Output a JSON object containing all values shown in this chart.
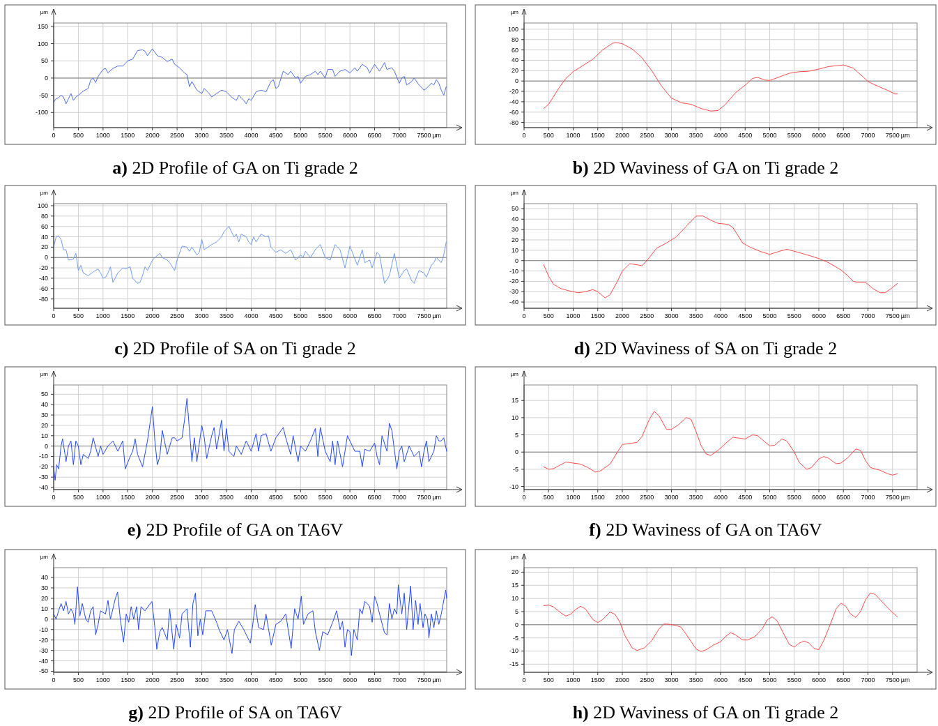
{
  "chart_data": [
    {
      "type": "line",
      "title": "a) 2D Profile of GA on Ti grade 2",
      "xlabel": "µm",
      "ylabel": "µm",
      "xlim": [
        0,
        7960
      ],
      "ylim": [
        -144,
        160
      ],
      "grid": true,
      "xticks": [
        0,
        500,
        1000,
        1500,
        2000,
        2500,
        3000,
        3500,
        4000,
        4500,
        5000,
        5500,
        6000,
        6500,
        7000,
        7500
      ],
      "yticks": [
        -100,
        -50,
        0,
        50,
        100,
        150
      ],
      "ref_lines": [
        {
          "axis": "y",
          "value": 0,
          "color": "#7f7f7f"
        }
      ],
      "series": [
        {
          "color": "#4a6ee8",
          "x": [
            0,
            50,
            100,
            150,
            200,
            250,
            300,
            350,
            400,
            450,
            500,
            600,
            700,
            750,
            800,
            850,
            900,
            1000,
            1050,
            1100,
            1200,
            1300,
            1400,
            1500,
            1600,
            1700,
            1800,
            1850,
            1900,
            2000,
            2100,
            2200,
            2300,
            2400,
            2450,
            2550,
            2650,
            2700,
            2750,
            2800,
            2900,
            3000,
            3050,
            3150,
            3200,
            3300,
            3400,
            3500,
            3600,
            3700,
            3750,
            3850,
            3900,
            3950,
            4000,
            4100,
            4200,
            4300,
            4400,
            4450,
            4500,
            4550,
            4650,
            4750,
            4800,
            4900,
            4950,
            5000,
            5100,
            5200,
            5300,
            5350,
            5400,
            5500,
            5550,
            5650,
            5700,
            5800,
            5900,
            6000,
            6100,
            6150,
            6250,
            6350,
            6400,
            6500,
            6600,
            6700,
            6750,
            6850,
            6900,
            7000,
            7050,
            7100,
            7150,
            7250,
            7300,
            7400,
            7500,
            7550,
            7650,
            7700,
            7750,
            7800,
            7850,
            7900,
            7950
          ],
          "values": [
            -70,
            -60,
            -57,
            -50,
            -55,
            -75,
            -60,
            -45,
            -65,
            -55,
            -50,
            -38,
            -30,
            -5,
            0,
            -13,
            5,
            25,
            28,
            15,
            28,
            35,
            35,
            50,
            55,
            80,
            82,
            78,
            65,
            85,
            65,
            60,
            48,
            55,
            40,
            30,
            15,
            10,
            -25,
            -10,
            -35,
            -45,
            -30,
            -45,
            -55,
            -45,
            -35,
            -40,
            -55,
            -65,
            -50,
            -65,
            -75,
            -60,
            -65,
            -40,
            -35,
            -40,
            -10,
            -5,
            -30,
            -25,
            20,
            10,
            20,
            0,
            5,
            -15,
            5,
            10,
            20,
            10,
            20,
            0,
            25,
            25,
            5,
            20,
            25,
            15,
            30,
            20,
            40,
            30,
            15,
            40,
            20,
            45,
            25,
            30,
            20,
            -15,
            0,
            5,
            -20,
            -10,
            0,
            -20,
            -35,
            -30,
            -15,
            -20,
            -5,
            -15,
            -35,
            -50,
            -25
          ]
        }
      ]
    },
    {
      "type": "line",
      "title": "b) 2D Waviness of GA on Ti grade 2",
      "xlabel": "µm",
      "ylabel": "µm",
      "xlim": [
        0,
        8000
      ],
      "ylim": [
        -90,
        112
      ],
      "grid": true,
      "xticks": [
        0,
        500,
        1000,
        1500,
        2000,
        2500,
        3000,
        3500,
        4000,
        4500,
        5000,
        5500,
        6000,
        6500,
        7000,
        7500
      ],
      "yticks": [
        -80,
        -60,
        -40,
        -20,
        0,
        20,
        40,
        60,
        80,
        100
      ],
      "ref_lines": [
        {
          "axis": "y",
          "value": 0,
          "color": "#7f7f7f"
        }
      ],
      "series": [
        {
          "color": "#ff4a4a",
          "x": [
            400,
            500,
            700,
            850,
            1000,
            1200,
            1400,
            1600,
            1800,
            1900,
            2000,
            2200,
            2400,
            2600,
            2800,
            3000,
            3200,
            3400,
            3600,
            3800,
            3950,
            4100,
            4300,
            4500,
            4650,
            4750,
            4900,
            5000,
            5200,
            5400,
            5600,
            5800,
            6000,
            6200,
            6500,
            6700,
            6900,
            7000,
            7200,
            7400,
            7550,
            7600
          ],
          "values": [
            -53,
            -45,
            -15,
            5,
            18,
            30,
            42,
            60,
            73,
            74,
            72,
            62,
            45,
            20,
            -10,
            -33,
            -42,
            -45,
            -53,
            -58,
            -57,
            -45,
            -23,
            -8,
            5,
            7,
            2,
            1,
            8,
            15,
            18,
            19,
            23,
            28,
            31,
            25,
            8,
            -1,
            -10,
            -18,
            -25,
            -25
          ]
        }
      ]
    },
    {
      "type": "line",
      "title": "c) 2D Profile of SA on Ti grade 2",
      "xlabel": "µm",
      "ylabel": "µm",
      "xlim": [
        0,
        7960
      ],
      "ylim": [
        -98,
        104
      ],
      "grid": true,
      "xticks": [
        0,
        500,
        1000,
        1500,
        2000,
        2500,
        3000,
        3500,
        4000,
        4500,
        5000,
        5500,
        6000,
        6500,
        7000,
        7500
      ],
      "yticks": [
        -80,
        -60,
        -40,
        -20,
        0,
        20,
        40,
        60,
        80,
        100
      ],
      "ref_lines": [
        {
          "axis": "y",
          "value": 0,
          "color": "#7f7f7f"
        }
      ],
      "series": [
        {
          "color": "#6f9cf2",
          "x": [
            0,
            50,
            100,
            150,
            200,
            250,
            300,
            400,
            450,
            500,
            550,
            600,
            700,
            800,
            900,
            950,
            1000,
            1050,
            1100,
            1150,
            1200,
            1300,
            1400,
            1450,
            1550,
            1600,
            1700,
            1750,
            1800,
            1850,
            1900,
            2000,
            2050,
            2150,
            2200,
            2300,
            2350,
            2450,
            2500,
            2600,
            2700,
            2750,
            2800,
            2900,
            2950,
            3000,
            3050,
            3200,
            3300,
            3400,
            3450,
            3500,
            3550,
            3650,
            3700,
            3750,
            3800,
            3900,
            3950,
            4000,
            4050,
            4100,
            4200,
            4300,
            4350,
            4400,
            4450,
            4500,
            4600,
            4700,
            4800,
            4900,
            5000,
            5050,
            5100,
            5200,
            5300,
            5400,
            5500,
            5600,
            5700,
            5800,
            5900,
            6000,
            6050,
            6150,
            6250,
            6300,
            6400,
            6450,
            6550,
            6600,
            6700,
            6800,
            6900,
            7000,
            7100,
            7150,
            7250,
            7300,
            7400,
            7500,
            7550,
            7650,
            7700,
            7750,
            7850,
            7900,
            7950
          ],
          "values": [
            20,
            40,
            42,
            35,
            15,
            15,
            -5,
            -3,
            8,
            -25,
            -15,
            -30,
            -35,
            -28,
            -22,
            -30,
            -40,
            -38,
            -30,
            -18,
            -48,
            -30,
            -20,
            -22,
            -18,
            -40,
            -50,
            -48,
            -35,
            -18,
            -25,
            -5,
            0,
            8,
            0,
            -5,
            -10,
            -25,
            -5,
            22,
            20,
            12,
            20,
            5,
            10,
            35,
            15,
            25,
            30,
            40,
            50,
            55,
            60,
            40,
            45,
            30,
            45,
            40,
            30,
            25,
            40,
            30,
            45,
            40,
            42,
            20,
            15,
            10,
            15,
            8,
            15,
            -5,
            5,
            0,
            12,
            0,
            15,
            25,
            0,
            -5,
            25,
            15,
            -20,
            22,
            10,
            -15,
            15,
            -10,
            -5,
            -20,
            10,
            5,
            -50,
            -35,
            8,
            -40,
            -25,
            -22,
            -45,
            -50,
            -25,
            -30,
            -38,
            -15,
            -10,
            0,
            -10,
            5,
            30
          ]
        }
      ]
    },
    {
      "type": "line",
      "title": "d) 2D Waviness of SA on Ti grade 2",
      "xlabel": "µm",
      "ylabel": "µm",
      "xlim": [
        0,
        8000
      ],
      "ylim": [
        -46,
        55
      ],
      "grid": true,
      "xticks": [
        0,
        500,
        1000,
        1500,
        2000,
        2500,
        3000,
        3500,
        4000,
        4500,
        5000,
        5500,
        6000,
        6500,
        7000,
        7500
      ],
      "yticks": [
        -40,
        -30,
        -20,
        -10,
        0,
        10,
        20,
        30,
        40,
        50
      ],
      "ref_lines": [
        {
          "axis": "y",
          "value": 0,
          "color": "#7f7f7f"
        }
      ],
      "series": [
        {
          "color": "#ff4a4a",
          "x": [
            400,
            500,
            600,
            750,
            900,
            1100,
            1250,
            1400,
            1500,
            1650,
            1750,
            1900,
            2000,
            2150,
            2300,
            2400,
            2500,
            2700,
            2900,
            3100,
            3300,
            3500,
            3650,
            3800,
            3950,
            4150,
            4250,
            4450,
            4600,
            4800,
            5000,
            5200,
            5350,
            5500,
            5800,
            6000,
            6200,
            6450,
            6600,
            6700,
            6800,
            6950,
            7100,
            7250,
            7350,
            7500,
            7600
          ],
          "values": [
            -4,
            -15,
            -23,
            -27,
            -29,
            -31,
            -30,
            -28,
            -30,
            -36,
            -33,
            -20,
            -10,
            -3,
            -4,
            -5,
            0,
            12,
            17,
            23,
            33,
            43,
            43,
            39,
            36,
            35,
            32,
            17,
            13,
            9,
            6,
            9,
            11,
            9,
            5,
            2,
            -2,
            -9,
            -15,
            -20,
            -21,
            -21,
            -27,
            -31,
            -31,
            -26,
            -22
          ]
        }
      ]
    },
    {
      "type": "line",
      "title": "e) 2D Profile of GA on TA6V",
      "xlabel": "µm",
      "ylabel": "µm",
      "xlim": [
        0,
        7960
      ],
      "ylim": [
        -42,
        59
      ],
      "grid": true,
      "xticks": [
        0,
        500,
        1000,
        1500,
        2000,
        2500,
        3000,
        3500,
        4000,
        4500,
        5000,
        5500,
        6000,
        6500,
        7000,
        7500
      ],
      "yticks": [
        -40,
        -30,
        -20,
        -10,
        0,
        10,
        20,
        30,
        40,
        50
      ],
      "ref_lines": [
        {
          "axis": "y",
          "value": 0,
          "color": "#7f7f7f"
        }
      ],
      "series": [
        {
          "color": "#2446ff",
          "x": [
            0,
            30,
            60,
            100,
            150,
            180,
            230,
            250,
            300,
            350,
            400,
            450,
            500,
            550,
            600,
            700,
            750,
            800,
            900,
            950,
            1000,
            1100,
            1200,
            1300,
            1400,
            1450,
            1550,
            1600,
            1650,
            1700,
            1800,
            1900,
            2000,
            2050,
            2100,
            2150,
            2200,
            2300,
            2400,
            2450,
            2500,
            2600,
            2650,
            2700,
            2750,
            2800,
            2850,
            2900,
            3000,
            3050,
            3100,
            3200,
            3250,
            3300,
            3400,
            3450,
            3500,
            3550,
            3650,
            3700,
            3800,
            3900,
            4000,
            4100,
            4150,
            4200,
            4300,
            4400,
            4500,
            4650,
            4700,
            4800,
            4850,
            4950,
            5000,
            5100,
            5200,
            5300,
            5350,
            5400,
            5500,
            5600,
            5650,
            5700,
            5750,
            5850,
            5950,
            6000,
            6100,
            6200,
            6250,
            6300,
            6400,
            6500,
            6550,
            6600,
            6650,
            6750,
            6800,
            6850,
            6950,
            7000,
            7050,
            7100,
            7200,
            7300,
            7400,
            7450,
            7500,
            7550,
            7600,
            7700,
            7750,
            7800,
            7850,
            7900,
            7960
          ],
          "values": [
            -20,
            -33,
            -18,
            -22,
            0,
            7,
            -8,
            -15,
            0,
            5,
            -18,
            5,
            0,
            -18,
            -8,
            -12,
            -5,
            8,
            -10,
            0,
            -8,
            0,
            5,
            -5,
            5,
            -22,
            -10,
            -5,
            7,
            -8,
            -20,
            5,
            38,
            5,
            -18,
            -10,
            15,
            -8,
            8,
            8,
            5,
            8,
            25,
            46,
            15,
            -15,
            8,
            -15,
            20,
            8,
            -12,
            10,
            18,
            -3,
            25,
            -5,
            17,
            -5,
            -10,
            0,
            -8,
            5,
            -5,
            12,
            -5,
            10,
            12,
            -5,
            8,
            18,
            8,
            -8,
            10,
            -15,
            0,
            -5,
            5,
            17,
            -10,
            18,
            -5,
            -15,
            5,
            -18,
            5,
            -20,
            10,
            5,
            -5,
            -5,
            -20,
            -3,
            -5,
            3,
            -10,
            -18,
            10,
            -5,
            22,
            15,
            -22,
            -5,
            0,
            -15,
            0,
            -10,
            -5,
            -20,
            -5,
            5,
            -15,
            -5,
            10,
            5,
            5,
            8,
            -5
          ]
        }
      ]
    },
    {
      "type": "line",
      "title": "f) 2D Waviness of GA on TA6V",
      "xlabel": "µm",
      "ylabel": "µm",
      "xlim": [
        0,
        8000
      ],
      "ylim": [
        -10.9,
        19.5
      ],
      "grid": true,
      "xticks": [
        0,
        500,
        1000,
        1500,
        2000,
        2500,
        3000,
        3500,
        4000,
        4500,
        5000,
        5500,
        6000,
        6500,
        7000,
        7500
      ],
      "yticks": [
        -10,
        -5,
        0,
        5,
        10,
        15
      ],
      "ref_lines": [
        {
          "axis": "y",
          "value": 0,
          "color": "#7f7f7f"
        }
      ],
      "series": [
        {
          "color": "#ff4a4a",
          "x": [
            400,
            500,
            600,
            850,
            1000,
            1150,
            1300,
            1450,
            1550,
            1750,
            1900,
            2000,
            2100,
            2300,
            2400,
            2550,
            2650,
            2750,
            2900,
            3000,
            3150,
            3300,
            3400,
            3500,
            3600,
            3700,
            3800,
            3950,
            4100,
            4250,
            4400,
            4500,
            4650,
            4750,
            4900,
            5000,
            5100,
            5250,
            5350,
            5500,
            5600,
            5750,
            5850,
            6000,
            6100,
            6200,
            6350,
            6450,
            6600,
            6750,
            6850,
            6950,
            7050,
            7250,
            7400,
            7500,
            7600
          ],
          "values": [
            -4.3,
            -5,
            -4.8,
            -2.9,
            -3.2,
            -3.5,
            -4.5,
            -5.8,
            -5.5,
            -3.5,
            0,
            2.2,
            2.4,
            2.8,
            4.5,
            9.5,
            11.8,
            10.5,
            6.6,
            6.6,
            8,
            10,
            9.5,
            6,
            2,
            -0.5,
            -1,
            0.5,
            2.5,
            4.3,
            4,
            3.8,
            5,
            4.8,
            3,
            1.8,
            2,
            3.8,
            3.2,
            0,
            -3,
            -5,
            -4.5,
            -2,
            -1.3,
            -1.8,
            -3.4,
            -3.2,
            -1.5,
            0.9,
            0.5,
            -2.5,
            -4.5,
            -5.3,
            -6.3,
            -6.7,
            -6.3
          ]
        }
      ]
    },
    {
      "type": "line",
      "title": "g) 2D Profile of SA on TA6V",
      "xlabel": "µm",
      "ylabel": "µm",
      "xlim": [
        0,
        7960
      ],
      "ylim": [
        -51,
        49.4
      ],
      "grid": true,
      "xticks": [
        0,
        500,
        1000,
        1500,
        2000,
        2500,
        3000,
        3500,
        4000,
        4500,
        5000,
        5500,
        6000,
        6500,
        7000,
        7500
      ],
      "yticks": [
        -50,
        -40,
        -30,
        -20,
        -10,
        0,
        10,
        20,
        30,
        40
      ],
      "ref_lines": [
        {
          "axis": "y",
          "value": 0,
          "color": "#7f7f7f"
        }
      ],
      "series": [
        {
          "color": "#2446ff",
          "x": [
            0,
            50,
            100,
            150,
            200,
            250,
            300,
            350,
            400,
            430,
            482,
            530,
            580,
            650,
            700,
            750,
            800,
            850,
            900,
            950,
            1050,
            1100,
            1150,
            1250,
            1294,
            1350,
            1415,
            1470,
            1520,
            1570,
            1620,
            1680,
            1720,
            1770,
            1850,
            1990,
            2050,
            2089,
            2150,
            2200,
            2300,
            2350,
            2432,
            2480,
            2550,
            2600,
            2700,
            2769,
            2820,
            2871,
            2920,
            2970,
            3020,
            3080,
            3200,
            3300,
            3350,
            3450,
            3520,
            3612,
            3660,
            3750,
            3850,
            3985,
            4082,
            4150,
            4250,
            4300,
            4407,
            4500,
            4600,
            4700,
            4750,
            4810,
            4880,
            4950,
            5015,
            5060,
            5150,
            5250,
            5300,
            5382,
            5450,
            5550,
            5650,
            5731,
            5800,
            5850,
            5900,
            5950,
            6000,
            6030,
            6080,
            6150,
            6200,
            6250,
            6300,
            6350,
            6400,
            6450,
            6500,
            6550,
            6600,
            6700,
            6750,
            6800,
            6850,
            6900,
            6950,
            6980,
            7050,
            7100,
            7150,
            7230,
            7280,
            7330,
            7380,
            7420,
            7480,
            7520,
            7570,
            7600,
            7650,
            7700,
            7750,
            7800,
            7850,
            7940,
            7960
          ],
          "values": [
            5,
            0,
            8,
            15,
            8,
            17,
            5,
            10,
            5,
            -5,
            31,
            3,
            15,
            0,
            -3,
            8,
            12,
            -15,
            -5,
            8,
            5,
            18,
            0,
            20,
            26,
            0,
            -22,
            5,
            -3,
            12,
            0,
            12,
            -10,
            12,
            8,
            17,
            -8,
            -29,
            -12,
            -8,
            -20,
            10,
            -29,
            -5,
            -18,
            5,
            10,
            -27,
            15,
            25,
            -16,
            0,
            -15,
            8,
            8,
            -3,
            -10,
            -20,
            -10,
            -33,
            -10,
            -2,
            -10,
            -23,
            14,
            -8,
            -10,
            5,
            -25,
            -5,
            -2,
            5,
            -10,
            -28,
            10,
            0,
            22,
            -5,
            5,
            8,
            -12,
            -30,
            -12,
            -15,
            -3,
            8,
            -10,
            -2,
            -27,
            -10,
            -12,
            -35,
            -10,
            -20,
            10,
            5,
            17,
            15,
            12,
            -3,
            22,
            15,
            5,
            -13,
            -15,
            15,
            0,
            10,
            5,
            33,
            5,
            25,
            -10,
            32,
            -10,
            18,
            -5,
            15,
            -8,
            5,
            0,
            -18,
            5,
            -8,
            8,
            -5,
            5,
            28,
            20
          ]
        }
      ]
    },
    {
      "type": "line",
      "title": "h) 2D Waviness of GA on Ti grade 2",
      "xlabel": "µm",
      "ylabel": "µm",
      "xlim": [
        0,
        8000
      ],
      "ylim": [
        -18.1,
        21.7
      ],
      "grid": true,
      "xticks": [
        0,
        500,
        1000,
        1500,
        2000,
        2500,
        3000,
        3500,
        4000,
        4500,
        5000,
        5500,
        6000,
        6500,
        7000,
        7500
      ],
      "yticks": [
        -15,
        -10,
        -5,
        0,
        5,
        10,
        15,
        20
      ],
      "ref_lines": [
        {
          "axis": "y",
          "value": 0,
          "color": "#7f7f7f"
        }
      ],
      "series": [
        {
          "color": "#ff4a4a",
          "x": [
            400,
            500,
            600,
            750,
            850,
            950,
            1050,
            1150,
            1250,
            1400,
            1500,
            1600,
            1750,
            1850,
            1950,
            2050,
            2200,
            2300,
            2450,
            2600,
            2750,
            2850,
            2950,
            3100,
            3200,
            3350,
            3500,
            3600,
            3700,
            3850,
            4000,
            4100,
            4200,
            4300,
            4450,
            4550,
            4700,
            4850,
            4950,
            5050,
            5150,
            5300,
            5400,
            5500,
            5600,
            5700,
            5800,
            5900,
            6000,
            6100,
            6250,
            6350,
            6450,
            6550,
            6650,
            6750,
            6850,
            6950,
            7050,
            7150,
            7300,
            7450,
            7600
          ],
          "values": [
            7.2,
            7.5,
            6.8,
            4.5,
            3.3,
            4,
            5.8,
            7,
            6,
            2,
            0.8,
            2,
            4.8,
            4,
            1,
            -4,
            -8.8,
            -9.8,
            -8.8,
            -6,
            -1.5,
            0.3,
            0.2,
            -0.3,
            -1,
            -5,
            -9.2,
            -10.2,
            -9.6,
            -7.8,
            -6.5,
            -4.5,
            -3,
            -3.8,
            -5.8,
            -5.8,
            -4.5,
            -1.5,
            1.8,
            3,
            1.5,
            -4,
            -7.5,
            -8.5,
            -7,
            -6.2,
            -7,
            -9,
            -9.5,
            -6,
            1,
            6,
            8.2,
            7,
            4,
            2.8,
            5,
            9.5,
            12.1,
            11.5,
            8.5,
            5.5,
            3
          ]
        }
      ]
    }
  ]
}
